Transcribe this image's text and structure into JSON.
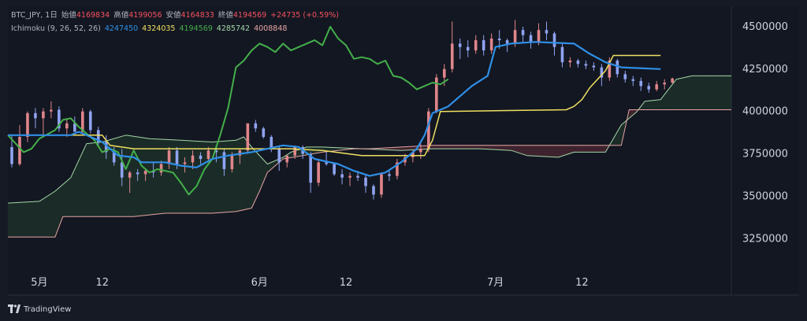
{
  "legend": {
    "symbol": "BTC_JPY, 1日",
    "open_label": "始値",
    "open": "4169834",
    "high_label": "高値",
    "high": "4199056",
    "low_label": "安値",
    "low": "4164833",
    "close_label": "終値",
    "close": "4194569",
    "change": "+24735 (+0.59%)",
    "indicator": "Ichimoku (9, 26, 52, 26)",
    "ind_values": [
      "4247450",
      "4324035",
      "4194569",
      "4285742",
      "4008848"
    ]
  },
  "footer": {
    "brand": "TradingView"
  },
  "colors": {
    "bg": "#161a25",
    "up": "#e0868b",
    "down": "#8fa3f0",
    "conversion": "#2f8fe6",
    "base": "#f0e060",
    "lagging": "#43b04a",
    "spanA": "#a5d6a7",
    "spanB": "#e8a5a5"
  },
  "chart_data": {
    "type": "candlestick",
    "x_tick_labels": [
      {
        "label": "5月",
        "day": 4
      },
      {
        "label": "12",
        "day": 12
      },
      {
        "label": "6月",
        "day": 32
      },
      {
        "label": "12",
        "day": 43
      },
      {
        "label": "7月",
        "day": 62
      },
      {
        "label": "12",
        "day": 73
      }
    ],
    "y_ticks": [
      3250000,
      3500000,
      3750000,
      4000000,
      4250000,
      4500000
    ],
    "ylim": [
      3080000,
      4620000
    ],
    "x_days": [
      0,
      92
    ],
    "candles": [
      [
        3790000,
        3860000,
        3670000,
        3690000
      ],
      [
        3690000,
        3920000,
        3680000,
        3850000
      ],
      [
        3850000,
        4000000,
        3820000,
        3990000
      ],
      [
        3990000,
        4020000,
        3900000,
        3960000
      ],
      [
        3960000,
        4020000,
        3850000,
        4000000
      ],
      [
        4000000,
        4060000,
        3960000,
        4010000
      ],
      [
        4010000,
        4030000,
        3880000,
        3900000
      ],
      [
        3900000,
        3960000,
        3850000,
        3930000
      ],
      [
        3930000,
        3970000,
        3880000,
        3880000
      ],
      [
        3880000,
        4020000,
        3870000,
        4000000
      ],
      [
        4000000,
        4010000,
        3870000,
        3890000
      ],
      [
        3890000,
        3910000,
        3790000,
        3820000
      ],
      [
        3820000,
        3860000,
        3720000,
        3760000
      ],
      [
        3760000,
        3790000,
        3680000,
        3700000
      ],
      [
        3700000,
        3780000,
        3560000,
        3610000
      ],
      [
        3610000,
        3650000,
        3520000,
        3640000
      ],
      [
        3640000,
        3660000,
        3590000,
        3630000
      ],
      [
        3630000,
        3660000,
        3590000,
        3650000
      ],
      [
        3650000,
        3700000,
        3610000,
        3640000
      ],
      [
        3640000,
        3710000,
        3620000,
        3690000
      ],
      [
        3690000,
        3790000,
        3660000,
        3770000
      ],
      [
        3770000,
        3790000,
        3660000,
        3690000
      ],
      [
        3690000,
        3730000,
        3640000,
        3700000
      ],
      [
        3700000,
        3770000,
        3660000,
        3740000
      ],
      [
        3740000,
        3760000,
        3690000,
        3720000
      ],
      [
        3720000,
        3790000,
        3700000,
        3770000
      ],
      [
        3770000,
        3800000,
        3700000,
        3760000
      ],
      [
        3760000,
        3780000,
        3620000,
        3660000
      ],
      [
        3660000,
        3760000,
        3640000,
        3740000
      ],
      [
        3740000,
        3780000,
        3690000,
        3770000
      ],
      [
        3770000,
        3920000,
        3750000,
        3930000
      ],
      [
        3930000,
        3950000,
        3880000,
        3900000
      ],
      [
        3900000,
        3910000,
        3840000,
        3850000
      ],
      [
        3850000,
        3860000,
        3760000,
        3780000
      ],
      [
        3780000,
        3800000,
        3650000,
        3700000
      ],
      [
        3700000,
        3740000,
        3670000,
        3740000
      ],
      [
        3740000,
        3800000,
        3720000,
        3790000
      ],
      [
        3790000,
        3800000,
        3720000,
        3750000
      ],
      [
        3750000,
        3760000,
        3520000,
        3580000
      ],
      [
        3580000,
        3720000,
        3560000,
        3700000
      ],
      [
        3700000,
        3760000,
        3680000,
        3690000
      ],
      [
        3690000,
        3700000,
        3620000,
        3630000
      ],
      [
        3630000,
        3660000,
        3570000,
        3610000
      ],
      [
        3610000,
        3640000,
        3560000,
        3620000
      ],
      [
        3620000,
        3650000,
        3590000,
        3610000
      ],
      [
        3610000,
        3630000,
        3520000,
        3560000
      ],
      [
        3560000,
        3570000,
        3480000,
        3510000
      ],
      [
        3510000,
        3640000,
        3490000,
        3630000
      ],
      [
        3630000,
        3660000,
        3590000,
        3620000
      ],
      [
        3620000,
        3720000,
        3600000,
        3700000
      ],
      [
        3700000,
        3750000,
        3680000,
        3730000
      ],
      [
        3730000,
        3770000,
        3700000,
        3760000
      ],
      [
        3760000,
        3810000,
        3720000,
        3780000
      ],
      [
        3780000,
        4020000,
        3760000,
        4000000
      ],
      [
        4000000,
        4220000,
        3990000,
        4200000
      ],
      [
        4200000,
        4280000,
        4150000,
        4250000
      ],
      [
        4250000,
        4530000,
        4230000,
        4400000
      ],
      [
        4400000,
        4430000,
        4310000,
        4380000
      ],
      [
        4380000,
        4420000,
        4320000,
        4360000
      ],
      [
        4360000,
        4450000,
        4340000,
        4420000
      ],
      [
        4420000,
        4450000,
        4330000,
        4360000
      ],
      [
        4360000,
        4460000,
        4340000,
        4430000
      ],
      [
        4430000,
        4480000,
        4370000,
        4420000
      ],
      [
        4420000,
        4430000,
        4350000,
        4400000
      ],
      [
        4400000,
        4540000,
        4380000,
        4480000
      ],
      [
        4480000,
        4500000,
        4400000,
        4450000
      ],
      [
        4450000,
        4470000,
        4370000,
        4410000
      ],
      [
        4410000,
        4520000,
        4390000,
        4480000
      ],
      [
        4480000,
        4530000,
        4420000,
        4460000
      ],
      [
        4460000,
        4470000,
        4330000,
        4380000
      ],
      [
        4380000,
        4400000,
        4260000,
        4290000
      ],
      [
        4290000,
        4320000,
        4260000,
        4300000
      ],
      [
        4300000,
        4310000,
        4260000,
        4280000
      ],
      [
        4280000,
        4300000,
        4250000,
        4270000
      ],
      [
        4270000,
        4290000,
        4240000,
        4260000
      ],
      [
        4260000,
        4280000,
        4150000,
        4200000
      ],
      [
        4200000,
        4320000,
        4180000,
        4300000
      ],
      [
        4300000,
        4310000,
        4200000,
        4220000
      ],
      [
        4220000,
        4240000,
        4170000,
        4190000
      ],
      [
        4190000,
        4210000,
        4150000,
        4180000
      ],
      [
        4180000,
        4200000,
        4120000,
        4150000
      ],
      [
        4150000,
        4170000,
        4110000,
        4130000
      ],
      [
        4130000,
        4180000,
        4120000,
        4160000
      ],
      [
        4160000,
        4190000,
        4130000,
        4170000
      ],
      [
        4169834,
        4199056,
        4164833,
        4194569
      ]
    ],
    "conversion": [
      [
        0,
        3860000
      ],
      [
        8,
        3860000
      ],
      [
        9,
        3880000
      ],
      [
        10,
        3860000
      ],
      [
        12,
        3820000
      ],
      [
        14,
        3740000
      ],
      [
        16,
        3730000
      ],
      [
        17,
        3700000
      ],
      [
        20,
        3700000
      ],
      [
        22,
        3680000
      ],
      [
        24,
        3670000
      ],
      [
        26,
        3720000
      ],
      [
        28,
        3740000
      ],
      [
        31,
        3760000
      ],
      [
        33,
        3780000
      ],
      [
        35,
        3800000
      ],
      [
        37,
        3790000
      ],
      [
        39,
        3720000
      ],
      [
        42,
        3690000
      ],
      [
        44,
        3650000
      ],
      [
        46,
        3620000
      ],
      [
        48,
        3640000
      ],
      [
        50,
        3700000
      ],
      [
        52,
        3780000
      ],
      [
        53,
        3860000
      ],
      [
        54,
        3990000
      ],
      [
        56,
        4030000
      ],
      [
        58,
        4110000
      ],
      [
        59,
        4150000
      ],
      [
        61,
        4210000
      ],
      [
        62,
        4380000
      ],
      [
        64,
        4400000
      ],
      [
        67,
        4410000
      ],
      [
        72,
        4400000
      ],
      [
        74,
        4340000
      ],
      [
        76,
        4290000
      ],
      [
        78,
        4260000
      ],
      [
        83,
        4250000
      ]
    ],
    "base": [
      [
        0,
        3860000
      ],
      [
        12,
        3860000
      ],
      [
        13,
        3800000
      ],
      [
        16,
        3780000
      ],
      [
        30,
        3780000
      ],
      [
        31,
        3780000
      ],
      [
        36,
        3780000
      ],
      [
        40,
        3770000
      ],
      [
        45,
        3740000
      ],
      [
        50,
        3740000
      ],
      [
        53,
        3740000
      ],
      [
        54,
        3830000
      ],
      [
        55,
        4000000
      ],
      [
        71,
        4010000
      ],
      [
        72,
        4030000
      ],
      [
        73,
        4070000
      ],
      [
        74,
        4140000
      ],
      [
        76,
        4240000
      ],
      [
        77,
        4330000
      ],
      [
        83,
        4330000
      ]
    ],
    "lagging": [
      [
        0,
        3860000
      ],
      [
        2,
        3760000
      ],
      [
        3,
        3780000
      ],
      [
        4,
        3840000
      ],
      [
        6,
        3890000
      ],
      [
        7,
        3950000
      ],
      [
        8,
        3960000
      ],
      [
        9,
        3910000
      ],
      [
        10,
        3870000
      ],
      [
        11,
        3830000
      ],
      [
        12,
        3760000
      ],
      [
        13,
        3780000
      ],
      [
        14,
        3760000
      ],
      [
        15,
        3660000
      ],
      [
        16,
        3770000
      ],
      [
        17,
        3680000
      ],
      [
        18,
        3640000
      ],
      [
        19,
        3660000
      ],
      [
        20,
        3650000
      ],
      [
        21,
        3640000
      ],
      [
        22,
        3580000
      ],
      [
        23,
        3510000
      ],
      [
        24,
        3560000
      ],
      [
        25,
        3660000
      ],
      [
        26,
        3720000
      ],
      [
        27,
        3860000
      ],
      [
        28,
        4020000
      ],
      [
        29,
        4260000
      ],
      [
        30,
        4300000
      ],
      [
        31,
        4360000
      ],
      [
        32,
        4400000
      ],
      [
        33,
        4380000
      ],
      [
        34,
        4350000
      ],
      [
        35,
        4400000
      ],
      [
        36,
        4360000
      ],
      [
        37,
        4380000
      ],
      [
        38,
        4400000
      ],
      [
        39,
        4420000
      ],
      [
        40,
        4390000
      ],
      [
        41,
        4500000
      ],
      [
        42,
        4430000
      ],
      [
        43,
        4390000
      ],
      [
        44,
        4310000
      ],
      [
        45,
        4320000
      ],
      [
        46,
        4310000
      ],
      [
        47,
        4280000
      ],
      [
        48,
        4300000
      ],
      [
        49,
        4210000
      ],
      [
        50,
        4200000
      ],
      [
        51,
        4170000
      ],
      [
        52,
        4130000
      ],
      [
        53,
        4150000
      ],
      [
        54,
        4170000
      ],
      [
        55,
        4160000
      ],
      [
        56,
        4190000
      ]
    ],
    "spanA": [
      [
        0,
        3460000
      ],
      [
        4,
        3470000
      ],
      [
        6,
        3530000
      ],
      [
        8,
        3610000
      ],
      [
        10,
        3810000
      ],
      [
        12,
        3820000
      ],
      [
        15,
        3860000
      ],
      [
        18,
        3840000
      ],
      [
        22,
        3830000
      ],
      [
        26,
        3820000
      ],
      [
        29,
        3830000
      ],
      [
        30,
        3850000
      ],
      [
        31,
        3790000
      ],
      [
        33,
        3690000
      ],
      [
        35,
        3730000
      ],
      [
        36,
        3760000
      ],
      [
        38,
        3790000
      ],
      [
        40,
        3790000
      ],
      [
        50,
        3770000
      ],
      [
        54,
        3780000
      ],
      [
        60,
        3780000
      ],
      [
        64,
        3770000
      ],
      [
        66,
        3740000
      ],
      [
        70,
        3730000
      ],
      [
        72,
        3760000
      ],
      [
        76,
        3760000
      ],
      [
        78,
        3920000
      ],
      [
        80,
        4000000
      ],
      [
        81,
        4060000
      ],
      [
        83,
        4070000
      ],
      [
        85,
        4190000
      ],
      [
        87,
        4210000
      ],
      [
        92,
        4210000
      ]
    ],
    "spanB": [
      [
        0,
        3260000
      ],
      [
        6,
        3260000
      ],
      [
        7,
        3380000
      ],
      [
        16,
        3380000
      ],
      [
        20,
        3400000
      ],
      [
        26,
        3400000
      ],
      [
        29,
        3410000
      ],
      [
        31,
        3430000
      ],
      [
        32,
        3530000
      ],
      [
        33,
        3640000
      ],
      [
        35,
        3720000
      ],
      [
        40,
        3760000
      ],
      [
        44,
        3780000
      ],
      [
        46,
        3780000
      ],
      [
        50,
        3790000
      ],
      [
        54,
        3800000
      ],
      [
        78,
        3800000
      ],
      [
        79,
        4010000
      ],
      [
        92,
        4010000
      ]
    ]
  }
}
